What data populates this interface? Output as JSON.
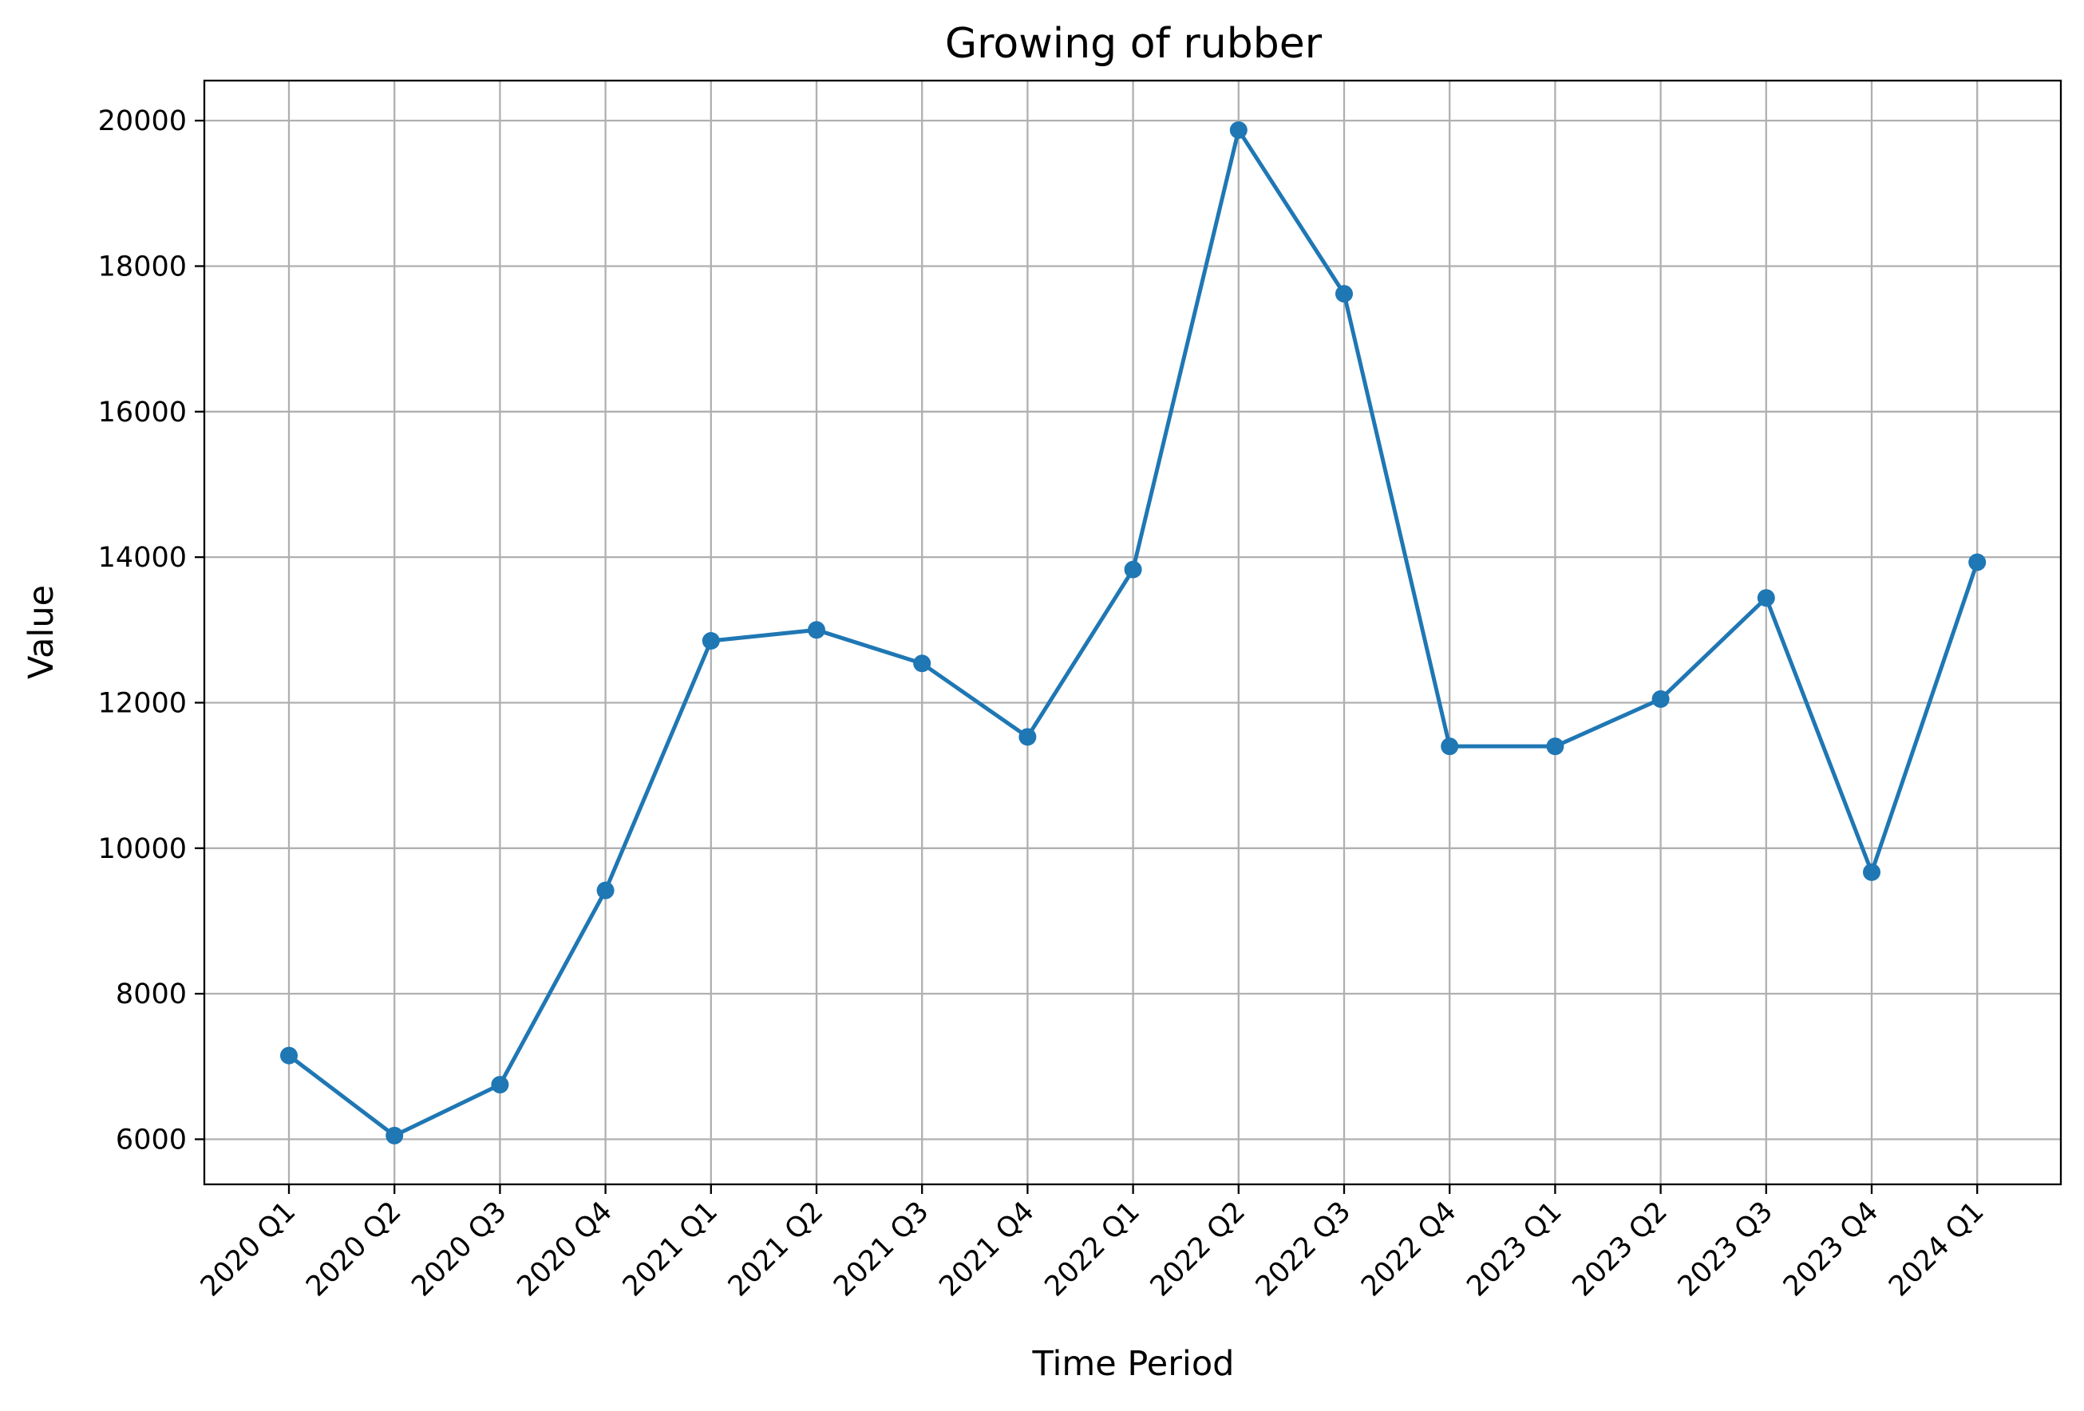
{
  "chart_data": {
    "type": "line",
    "title": "Growing of rubber",
    "xlabel": "Time Period",
    "ylabel": "Value",
    "categories": [
      "2020 Q1",
      "2020 Q2",
      "2020 Q3",
      "2020 Q4",
      "2021 Q1",
      "2021 Q2",
      "2021 Q3",
      "2021 Q4",
      "2022 Q1",
      "2022 Q2",
      "2022 Q3",
      "2022 Q4",
      "2023 Q1",
      "2023 Q2",
      "2023 Q3",
      "2023 Q4",
      "2024 Q1"
    ],
    "series": [
      {
        "values": [
          7150,
          6050,
          6750,
          9420,
          12850,
          13000,
          12540,
          11530,
          13830,
          19870,
          17620,
          11400,
          11400,
          12050,
          13440,
          9670,
          13930
        ]
      }
    ],
    "yticks": [
      6000,
      8000,
      10000,
      12000,
      14000,
      16000,
      18000,
      20000
    ],
    "ylim": [
      5380,
      20550
    ],
    "grid": true,
    "marker": "circle",
    "colors": {
      "line": "#1f77b4",
      "grid": "#b0b0b0"
    }
  }
}
